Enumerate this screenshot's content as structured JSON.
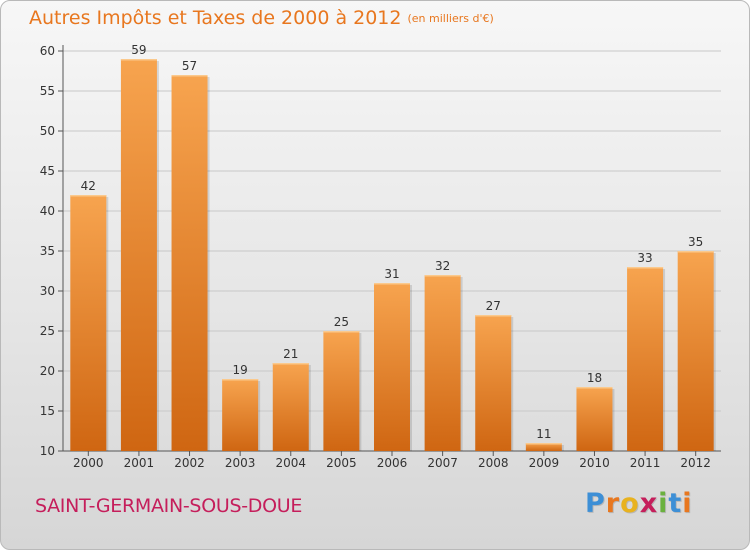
{
  "header": {
    "title": "Autres Impôts et Taxes de 2000 à 2012",
    "unit": "(en milliers d'€)"
  },
  "footer": {
    "place": "SAINT-GERMAIN-SOUS-DOUE",
    "logo_letters": [
      "P",
      "r",
      "o",
      "x",
      "i",
      "t",
      "i"
    ],
    "logo_colors": [
      "#3d8fd6",
      "#e8771f",
      "#e8b21f",
      "#c51e5b",
      "#6ab13f",
      "#3d8fd6",
      "#e8771f"
    ]
  },
  "colors": {
    "bar_light": "#f7a44f",
    "bar_dark": "#cf6612",
    "title": "#e8771f",
    "place": "#c51e5b",
    "grid": "#c8c8c8"
  },
  "chart_data": {
    "type": "bar",
    "categories": [
      "2000",
      "2001",
      "2002",
      "2003",
      "2004",
      "2005",
      "2006",
      "2007",
      "2008",
      "2009",
      "2010",
      "2011",
      "2012"
    ],
    "values": [
      42,
      59,
      57,
      19,
      21,
      25,
      31,
      32,
      27,
      11,
      18,
      33,
      35
    ],
    "title": "Autres Impôts et Taxes de 2000 à 2012",
    "xlabel": "",
    "ylabel": "",
    "ylim": [
      10,
      60
    ],
    "yticks": [
      10,
      15,
      20,
      25,
      30,
      35,
      40,
      45,
      50,
      55,
      60
    ],
    "grid": true,
    "legend": "none"
  }
}
